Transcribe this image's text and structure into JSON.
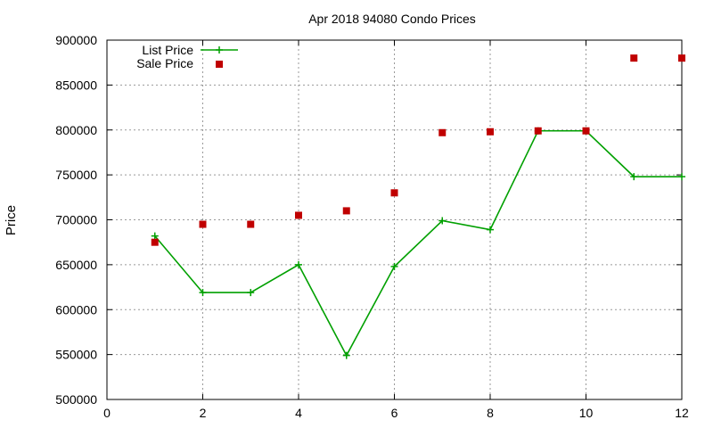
{
  "chart_data": {
    "type": "line",
    "title": "Apr 2018 94080 Condo Prices",
    "xlabel": "",
    "ylabel": "Price",
    "xlim": [
      0,
      12
    ],
    "ylim": [
      500000,
      900000
    ],
    "x_ticks": [
      "0",
      "2",
      "4",
      "6",
      "8",
      "10",
      "12"
    ],
    "y_ticks": [
      "500000",
      "550000",
      "600000",
      "650000",
      "700000",
      "750000",
      "800000",
      "850000",
      "900000"
    ],
    "grid": true,
    "legend_position": "top-left",
    "series": [
      {
        "name": "List Price",
        "style": "line-with-plus-markers",
        "color": "#00a000",
        "x": [
          1,
          2,
          3,
          4,
          5,
          6,
          7,
          8,
          9,
          10,
          11,
          12
        ],
        "y": [
          682000,
          619000,
          619000,
          650000,
          549000,
          648000,
          699000,
          689000,
          799000,
          799000,
          748000,
          748000
        ]
      },
      {
        "name": "Sale Price",
        "style": "square-markers",
        "color": "#c00000",
        "x": [
          1,
          2,
          3,
          4,
          5,
          6,
          7,
          8,
          9,
          10,
          11,
          12
        ],
        "y": [
          675000,
          695000,
          695000,
          705000,
          710000,
          730000,
          797000,
          798000,
          799000,
          799000,
          880000,
          880000
        ]
      }
    ]
  }
}
